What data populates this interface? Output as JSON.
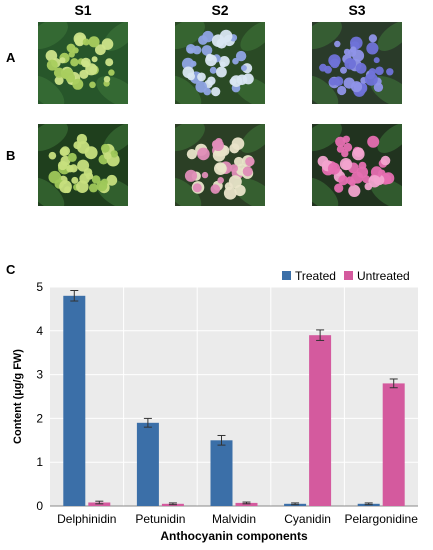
{
  "figure": {
    "columns": [
      "S1",
      "S2",
      "S3"
    ],
    "rows": [
      "A",
      "B"
    ],
    "chart_panel_label": "C",
    "photo_colors": {
      "A": [
        {
          "leaf": "#27562a",
          "petal": "#cde48a",
          "accent": "#a9cd5e"
        },
        {
          "leaf": "#2a4a25",
          "petal": "#d9e6f2",
          "accent": "#8fa4e4"
        },
        {
          "leaf": "#2a3b2a",
          "petal": "#8f94e8",
          "accent": "#6f72d8"
        }
      ],
      "B": [
        {
          "leaf": "#1f3f1d",
          "petal": "#c7df7e",
          "accent": "#9fc85a"
        },
        {
          "leaf": "#2b3f25",
          "petal": "#e9e4c9",
          "accent": "#e08db8"
        },
        {
          "leaf": "#21331f",
          "petal": "#e66fb1",
          "accent": "#f2a4cf"
        }
      ]
    }
  },
  "chart_data": {
    "type": "bar",
    "categories": [
      "Delphinidin",
      "Petunidin",
      "Malvidin",
      "Cyanidin",
      "Pelargonidine"
    ],
    "series": [
      {
        "name": "Treated",
        "values": [
          4.8,
          1.9,
          1.5,
          0.05,
          0.05
        ],
        "errors": [
          0.12,
          0.1,
          0.11,
          0.02,
          0.02
        ],
        "color": "#3b6fa8"
      },
      {
        "name": "Untreated",
        "values": [
          0.08,
          0.05,
          0.07,
          3.9,
          2.8
        ],
        "errors": [
          0.03,
          0.02,
          0.02,
          0.12,
          0.1
        ],
        "color": "#d45a9e"
      }
    ],
    "xlabel": "Anthocyanin components",
    "ylabel": "Content (µg/g FW)",
    "ylim": [
      0,
      5
    ],
    "yticks": [
      "0",
      "1",
      "2",
      "3",
      "4",
      "5"
    ],
    "grid": true,
    "legend_position": "top-right",
    "plot_background": "#ebebeb"
  }
}
